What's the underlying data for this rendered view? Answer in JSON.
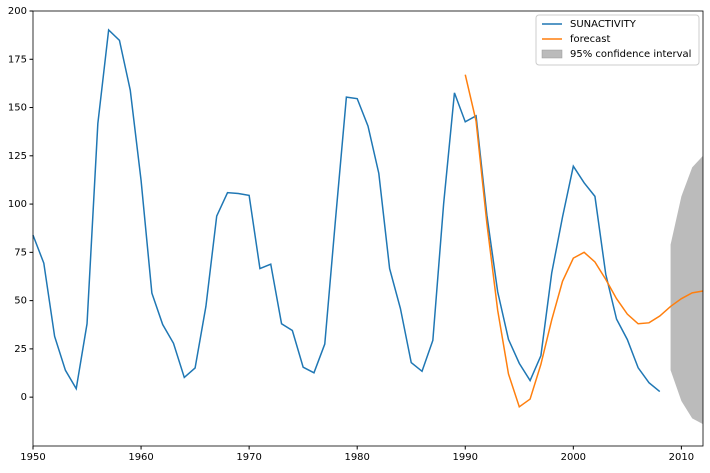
{
  "chart_data": {
    "type": "line",
    "x": [
      1950,
      1951,
      1952,
      1953,
      1954,
      1955,
      1956,
      1957,
      1958,
      1959,
      1960,
      1961,
      1962,
      1963,
      1964,
      1965,
      1966,
      1967,
      1968,
      1969,
      1970,
      1971,
      1972,
      1973,
      1974,
      1975,
      1976,
      1977,
      1978,
      1979,
      1980,
      1981,
      1982,
      1983,
      1984,
      1985,
      1986,
      1987,
      1988,
      1989,
      1990,
      1991,
      1992,
      1993,
      1994,
      1995,
      1996,
      1997,
      1998,
      1999,
      2000,
      2001,
      2002,
      2003,
      2004,
      2005,
      2006,
      2007,
      2008,
      2009,
      2010,
      2011,
      2012
    ],
    "series": [
      {
        "name": "SUNACTIVITY",
        "color": "#1f77b4",
        "values": [
          83.9,
          69.4,
          31.5,
          13.9,
          4.4,
          38.0,
          141.7,
          190.2,
          184.8,
          159.0,
          112.3,
          53.9,
          37.6,
          27.9,
          10.2,
          15.1,
          47.0,
          93.8,
          105.9,
          105.5,
          104.5,
          66.6,
          68.9,
          38.0,
          34.5,
          15.5,
          12.6,
          27.5,
          92.5,
          155.4,
          154.6,
          140.4,
          115.9,
          66.6,
          45.9,
          17.9,
          13.4,
          29.4,
          100.2,
          157.6,
          142.6,
          145.7,
          94.3,
          54.6,
          29.9,
          17.5,
          8.6,
          21.5,
          64.3,
          93.3,
          119.6,
          111.0,
          104.0,
          63.7,
          40.4,
          29.8,
          15.2,
          7.5,
          2.9,
          null,
          null,
          null,
          null
        ]
      },
      {
        "name": "forecast",
        "color": "#ff7f0e",
        "values": [
          null,
          null,
          null,
          null,
          null,
          null,
          null,
          null,
          null,
          null,
          null,
          null,
          null,
          null,
          null,
          null,
          null,
          null,
          null,
          null,
          null,
          null,
          null,
          null,
          null,
          null,
          null,
          null,
          null,
          null,
          null,
          null,
          null,
          null,
          null,
          null,
          null,
          null,
          null,
          null,
          167,
          143,
          90,
          45,
          12,
          -5,
          -1,
          17,
          40,
          60,
          72,
          75,
          70,
          61,
          51,
          43,
          38,
          38.5,
          42,
          47,
          51,
          54,
          55
        ]
      }
    ],
    "band": {
      "name": "95% confidence interval",
      "color": "#bbbbbb",
      "lower": [
        null,
        null,
        null,
        null,
        null,
        null,
        null,
        null,
        null,
        null,
        null,
        null,
        null,
        null,
        null,
        null,
        null,
        null,
        null,
        null,
        null,
        null,
        null,
        null,
        null,
        null,
        null,
        null,
        null,
        null,
        null,
        null,
        null,
        null,
        null,
        null,
        null,
        null,
        null,
        null,
        null,
        null,
        null,
        null,
        null,
        null,
        null,
        null,
        null,
        null,
        null,
        null,
        null,
        null,
        null,
        null,
        null,
        null,
        null,
        14,
        -2,
        -11,
        -14
      ],
      "upper": [
        null,
        null,
        null,
        null,
        null,
        null,
        null,
        null,
        null,
        null,
        null,
        null,
        null,
        null,
        null,
        null,
        null,
        null,
        null,
        null,
        null,
        null,
        null,
        null,
        null,
        null,
        null,
        null,
        null,
        null,
        null,
        null,
        null,
        null,
        null,
        null,
        null,
        null,
        null,
        null,
        null,
        null,
        null,
        null,
        null,
        null,
        null,
        null,
        null,
        null,
        null,
        null,
        null,
        null,
        null,
        null,
        null,
        null,
        null,
        79,
        104,
        119,
        125
      ]
    },
    "xlim": [
      1950,
      2012
    ],
    "ylim": [
      -25.3,
      200
    ],
    "xticks": [
      1950,
      1960,
      1970,
      1980,
      1990,
      2000,
      2010
    ],
    "yticks": [
      0,
      25,
      50,
      75,
      100,
      125,
      150,
      175,
      200
    ],
    "legend": "upper right"
  }
}
